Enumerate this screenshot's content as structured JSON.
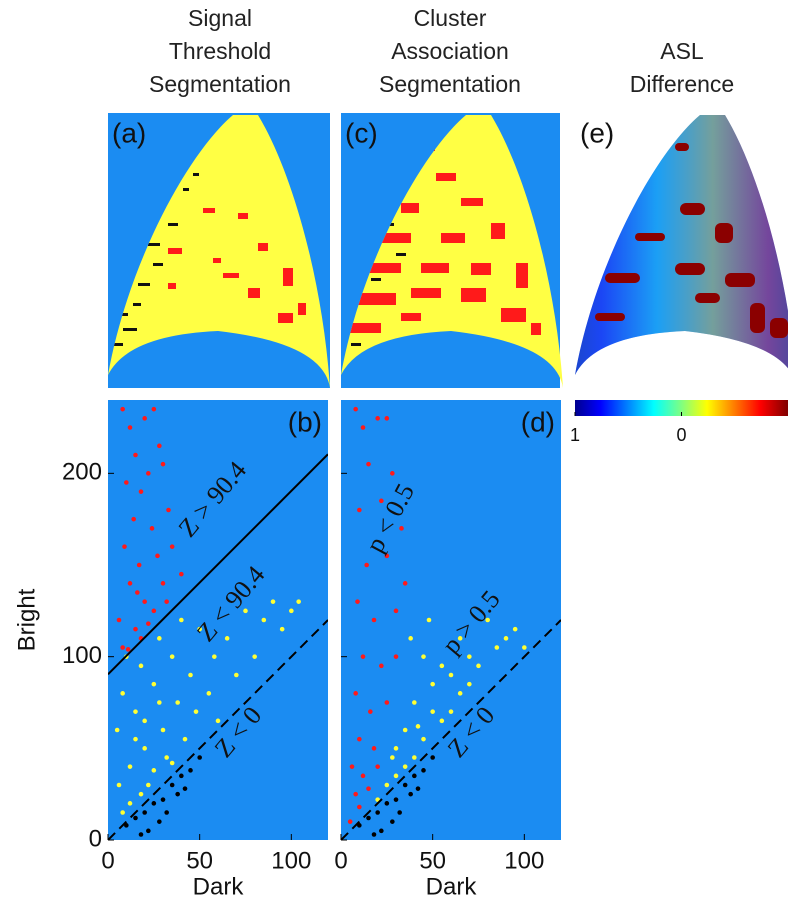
{
  "figure": {
    "column_titles": [
      [
        "Signal",
        "Threshold",
        "Segmentation"
      ],
      [
        "Cluster",
        "Association",
        "Segmentation"
      ],
      [
        "ASL",
        "Difference"
      ]
    ],
    "panel_labels": [
      "(a)",
      "(c)",
      "(e)"
    ],
    "colorbar": {
      "xlim": [
        -1,
        1
      ],
      "ticks": [
        {
          "value": -1,
          "label": "1"
        },
        0
      ]
    }
  },
  "chart_data": [
    {
      "type": "scatter",
      "panel_label": "(b)",
      "xlabel": "Dark",
      "ylabel": "Bright",
      "xlim": [
        0,
        120
      ],
      "ylim": [
        0,
        240
      ],
      "xticks": [
        0,
        50,
        100
      ],
      "yticks": [
        0,
        100,
        200
      ],
      "show_ytick_labels": true,
      "background": "#1b8cf2",
      "series": [
        {
          "color": "#ff1a1a",
          "x": [
            8,
            12,
            15,
            20,
            25,
            28,
            10,
            18,
            22,
            30,
            14,
            24,
            33,
            9,
            17,
            27,
            35,
            12,
            20,
            30,
            40,
            6,
            15,
            25,
            8,
            18,
            11,
            22,
            32,
            16
          ],
          "values": [
            235,
            225,
            210,
            230,
            235,
            215,
            195,
            190,
            200,
            205,
            175,
            170,
            180,
            160,
            150,
            155,
            160,
            140,
            130,
            140,
            145,
            120,
            115,
            125,
            105,
            110,
            104,
            118,
            130,
            135
          ]
        },
        {
          "color": "#ffff33",
          "x": [
            5,
            8,
            10,
            12,
            15,
            18,
            20,
            22,
            25,
            28,
            30,
            32,
            35,
            38,
            40,
            42,
            45,
            48,
            50,
            55,
            58,
            60,
            65,
            70,
            75,
            80,
            85,
            90,
            95,
            100,
            104,
            12,
            18,
            25,
            35,
            8,
            15,
            28,
            20,
            6
          ],
          "values": [
            60,
            80,
            100,
            40,
            70,
            95,
            50,
            30,
            85,
            110,
            60,
            45,
            100,
            75,
            120,
            55,
            90,
            70,
            115,
            80,
            100,
            65,
            110,
            90,
            125,
            100,
            120,
            130,
            115,
            125,
            130,
            20,
            25,
            38,
            42,
            15,
            55,
            75,
            65,
            30
          ]
        },
        {
          "color": "#000000",
          "x": [
            10,
            15,
            20,
            25,
            30,
            35,
            40,
            45,
            28,
            22,
            38,
            50,
            18,
            32,
            42
          ],
          "values": [
            8,
            12,
            15,
            20,
            22,
            30,
            35,
            38,
            10,
            5,
            25,
            45,
            3,
            15,
            28
          ]
        }
      ],
      "lines": [
        {
          "x": [
            0,
            120
          ],
          "y": [
            90.4,
            210.4
          ],
          "dash": false
        },
        {
          "x": [
            0,
            120
          ],
          "y": [
            0,
            120
          ],
          "dash": true
        }
      ],
      "annotations": [
        "Z > 90.4",
        "Z < 90.4",
        "Z < 0"
      ]
    },
    {
      "type": "scatter",
      "panel_label": "(d)",
      "xlabel": "Dark",
      "xlim": [
        0,
        120
      ],
      "ylim": [
        0,
        240
      ],
      "xticks": [
        0,
        50,
        100
      ],
      "yticks": [
        0,
        100,
        200
      ],
      "show_ytick_labels": false,
      "background": "#1b8cf2",
      "series": [
        {
          "color": "#ff1a1a",
          "x": [
            8,
            12,
            20,
            25,
            15,
            28,
            10,
            22,
            33,
            14,
            25,
            9,
            18,
            30,
            12,
            22,
            8,
            16,
            25,
            10,
            18,
            6,
            12,
            20,
            8,
            15,
            10,
            30,
            35,
            5
          ],
          "values": [
            235,
            225,
            230,
            230,
            205,
            200,
            180,
            185,
            170,
            150,
            155,
            130,
            120,
            125,
            100,
            95,
            80,
            70,
            75,
            55,
            50,
            40,
            35,
            40,
            25,
            28,
            18,
            100,
            140,
            10
          ]
        },
        {
          "color": "#ffff33",
          "x": [
            20,
            25,
            30,
            35,
            40,
            28,
            35,
            40,
            45,
            50,
            55,
            60,
            65,
            70,
            75,
            80,
            85,
            90,
            100,
            45,
            38,
            55,
            60,
            70,
            30,
            42,
            50,
            48,
            65,
            95
          ],
          "values": [
            22,
            30,
            35,
            40,
            45,
            45,
            60,
            75,
            55,
            70,
            65,
            90,
            80,
            100,
            95,
            120,
            105,
            110,
            105,
            100,
            110,
            95,
            70,
            85,
            50,
            62,
            85,
            120,
            110,
            115
          ]
        },
        {
          "color": "#000000",
          "x": [
            10,
            15,
            20,
            25,
            30,
            35,
            40,
            45,
            28,
            22,
            38,
            50,
            18,
            32,
            42
          ],
          "values": [
            8,
            12,
            15,
            20,
            22,
            30,
            35,
            38,
            10,
            5,
            25,
            45,
            3,
            15,
            28
          ]
        }
      ],
      "lines": [
        {
          "x": [
            0,
            120
          ],
          "y": [
            0,
            120
          ],
          "dash": true
        }
      ],
      "annotations": [
        "p < 0.5",
        "p > 0.5",
        "Z < 0"
      ]
    }
  ]
}
